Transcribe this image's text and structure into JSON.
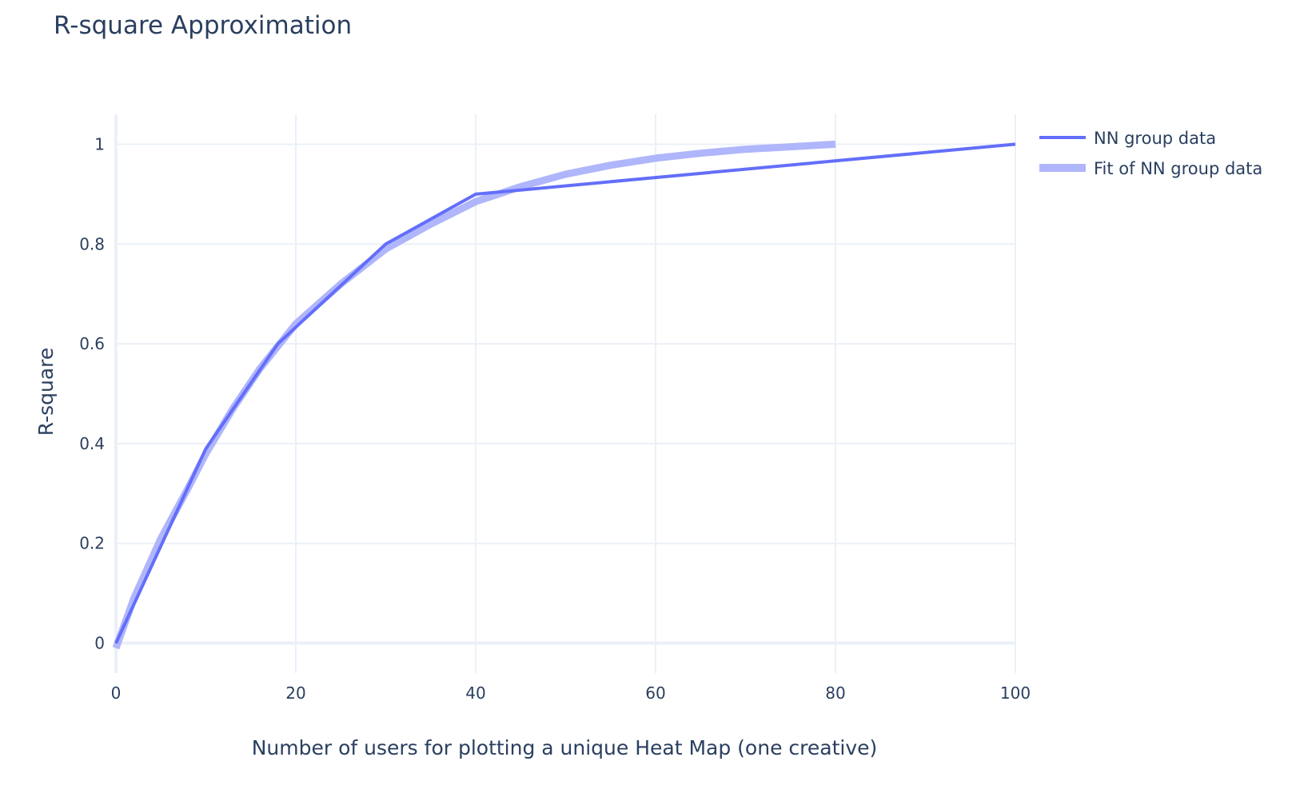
{
  "chart_data": {
    "type": "line",
    "title": "R-square Approximation",
    "xlabel": "Number of users for plotting a unique Heat Map (one creative)",
    "ylabel": "R-square",
    "xlim": [
      0,
      100
    ],
    "ylim": [
      -0.06,
      1.06
    ],
    "x_ticks": [
      0,
      20,
      40,
      60,
      80,
      100
    ],
    "x_tick_labels": [
      "0",
      "20",
      "40",
      "60",
      "80",
      "100"
    ],
    "y_ticks": [
      0,
      0.2,
      0.4,
      0.6,
      0.8,
      1
    ],
    "y_tick_labels": [
      "0",
      "0.2",
      "0.4",
      "0.6",
      "0.8",
      "1"
    ],
    "grid": true,
    "legend_position": "top-right",
    "series": [
      {
        "name": "NN group data",
        "color": "#636efa",
        "line_style": "thin",
        "x": [
          0,
          10,
          18,
          30,
          40,
          100
        ],
        "y": [
          0,
          0.39,
          0.6,
          0.8,
          0.9,
          1.0
        ]
      },
      {
        "name": "Fit of NN group data",
        "color": "#b0b6fb",
        "line_style": "thick",
        "x": [
          0,
          2,
          5,
          8,
          10,
          13,
          16,
          20,
          25,
          30,
          35,
          40,
          45,
          50,
          55,
          60,
          65,
          70,
          75,
          80
        ],
        "y": [
          -0.01,
          0.09,
          0.21,
          0.31,
          0.38,
          0.47,
          0.55,
          0.64,
          0.72,
          0.79,
          0.84,
          0.885,
          0.915,
          0.94,
          0.958,
          0.972,
          0.982,
          0.99,
          0.995,
          1.0
        ]
      }
    ]
  }
}
